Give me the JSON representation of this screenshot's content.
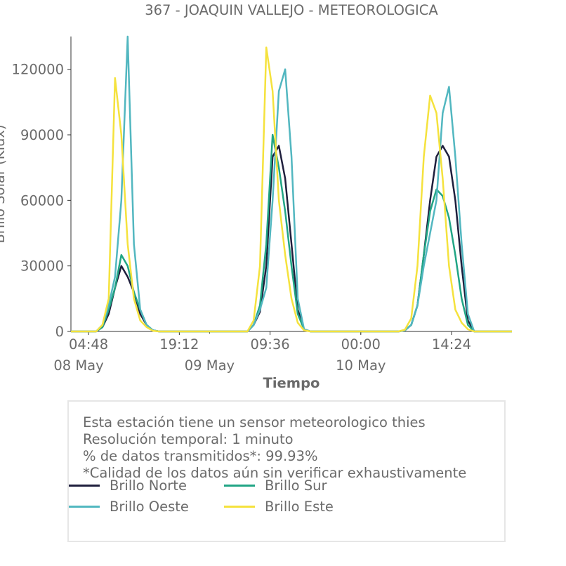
{
  "chart_data": {
    "type": "line",
    "title": "367 - JOAQUIN VALLEJO - METEOROLOGICA",
    "xlabel": "Tiempo",
    "ylabel": "Brillo Solar (Klux)",
    "xlim": [
      "2023-05-08 02:00",
      "2023-05-10 23:59"
    ],
    "ylim": [
      0,
      135000
    ],
    "y_ticks": [
      0,
      30000,
      60000,
      90000,
      120000
    ],
    "y_tick_labels": [
      "0",
      "30000",
      "60000",
      "90000",
      "120000"
    ],
    "x_ticks": [
      "2023-05-08 04:48",
      "2023-05-08 19:12",
      "2023-05-09 09:36",
      "2023-05-10 00:00",
      "2023-05-10 14:24"
    ],
    "x_tick_labels": [
      "04:48",
      "19:12",
      "09:36",
      "00:00",
      "14:24"
    ],
    "x_date_labels": [
      {
        "at": "2023-05-08 00:00",
        "label": "08 May"
      },
      {
        "at": "2023-05-09 00:00",
        "label": "09 May"
      },
      {
        "at": "2023-05-10 00:00",
        "label": "10 May"
      }
    ],
    "grid": false,
    "legend_placement": "bottom",
    "series": [
      {
        "name": "Brillo Norte",
        "color": "#1f1f3d",
        "x": [
          "2023-05-08 06:00",
          "2023-05-08 07:00",
          "2023-05-08 08:00",
          "2023-05-08 09:00",
          "2023-05-08 10:00",
          "2023-05-08 11:00",
          "2023-05-08 12:00",
          "2023-05-08 13:00",
          "2023-05-08 14:00",
          "2023-05-08 15:00",
          "2023-05-08 16:00",
          "2023-05-09 06:00",
          "2023-05-09 07:00",
          "2023-05-09 08:00",
          "2023-05-09 09:00",
          "2023-05-09 10:00",
          "2023-05-09 11:00",
          "2023-05-09 12:00",
          "2023-05-09 13:00",
          "2023-05-09 14:00",
          "2023-05-09 15:00",
          "2023-05-09 16:00",
          "2023-05-10 06:00",
          "2023-05-10 07:00",
          "2023-05-10 08:00",
          "2023-05-10 09:00",
          "2023-05-10 10:00",
          "2023-05-10 11:00",
          "2023-05-10 12:00",
          "2023-05-10 13:00",
          "2023-05-10 14:00",
          "2023-05-10 15:00",
          "2023-05-10 16:00",
          "2023-05-10 17:00",
          "2023-05-10 18:00"
        ],
        "y": [
          0,
          2000,
          8000,
          20000,
          30000,
          25000,
          18000,
          8000,
          3000,
          500,
          0,
          0,
          3000,
          9000,
          30000,
          80000,
          85000,
          70000,
          40000,
          10000,
          1000,
          0,
          0,
          500,
          3000,
          12000,
          35000,
          60000,
          80000,
          85000,
          80000,
          60000,
          30000,
          5000,
          0
        ]
      },
      {
        "name": "Brillo Sur",
        "color": "#21a585",
        "x": [
          "2023-05-08 06:00",
          "2023-05-08 07:00",
          "2023-05-08 08:00",
          "2023-05-08 09:00",
          "2023-05-08 10:00",
          "2023-05-08 11:00",
          "2023-05-08 12:00",
          "2023-05-08 13:00",
          "2023-05-08 14:00",
          "2023-05-08 15:00",
          "2023-05-08 16:00",
          "2023-05-09 06:00",
          "2023-05-09 07:00",
          "2023-05-09 08:00",
          "2023-05-09 09:00",
          "2023-05-09 10:00",
          "2023-05-09 11:00",
          "2023-05-09 12:00",
          "2023-05-09 13:00",
          "2023-05-09 14:00",
          "2023-05-09 15:00",
          "2023-05-09 16:00",
          "2023-05-10 06:00",
          "2023-05-10 07:00",
          "2023-05-10 08:00",
          "2023-05-10 09:00",
          "2023-05-10 10:00",
          "2023-05-10 11:00",
          "2023-05-10 12:00",
          "2023-05-10 13:00",
          "2023-05-10 14:00",
          "2023-05-10 15:00",
          "2023-05-10 16:00",
          "2023-05-10 17:00",
          "2023-05-10 18:00"
        ],
        "y": [
          0,
          2000,
          10000,
          20000,
          35000,
          30000,
          18000,
          10000,
          3000,
          500,
          0,
          0,
          3000,
          12000,
          40000,
          90000,
          75000,
          55000,
          30000,
          8000,
          1000,
          0,
          0,
          500,
          3000,
          12000,
          35000,
          55000,
          65000,
          62000,
          52000,
          35000,
          15000,
          3000,
          0
        ]
      },
      {
        "name": "Brillo Oeste",
        "color": "#52b7c0",
        "x": [
          "2023-05-08 06:00",
          "2023-05-08 07:00",
          "2023-05-08 08:00",
          "2023-05-08 09:00",
          "2023-05-08 10:00",
          "2023-05-08 11:00",
          "2023-05-08 12:00",
          "2023-05-08 13:00",
          "2023-05-08 14:00",
          "2023-05-08 15:00",
          "2023-05-08 16:00",
          "2023-05-09 06:00",
          "2023-05-09 07:00",
          "2023-05-09 08:00",
          "2023-05-09 09:00",
          "2023-05-09 10:00",
          "2023-05-09 11:00",
          "2023-05-09 12:00",
          "2023-05-09 13:00",
          "2023-05-09 14:00",
          "2023-05-09 15:00",
          "2023-05-09 16:00",
          "2023-05-10 06:00",
          "2023-05-10 07:00",
          "2023-05-10 08:00",
          "2023-05-10 09:00",
          "2023-05-10 10:00",
          "2023-05-10 11:00",
          "2023-05-10 12:00",
          "2023-05-10 13:00",
          "2023-05-10 14:00",
          "2023-05-10 15:00",
          "2023-05-10 16:00",
          "2023-05-10 17:00",
          "2023-05-10 18:00"
        ],
        "y": [
          0,
          3000,
          12000,
          25000,
          60000,
          135000,
          40000,
          10000,
          3000,
          500,
          0,
          0,
          3000,
          10000,
          20000,
          60000,
          110000,
          120000,
          80000,
          15000,
          1000,
          0,
          0,
          500,
          3000,
          12000,
          30000,
          45000,
          60000,
          100000,
          112000,
          80000,
          40000,
          8000,
          0
        ]
      },
      {
        "name": "Brillo Este",
        "color": "#f5e23d",
        "x": [
          "2023-05-08 06:00",
          "2023-05-08 07:00",
          "2023-05-08 08:00",
          "2023-05-08 09:00",
          "2023-05-08 10:00",
          "2023-05-08 11:00",
          "2023-05-08 12:00",
          "2023-05-08 13:00",
          "2023-05-08 14:00",
          "2023-05-08 15:00",
          "2023-05-08 16:00",
          "2023-05-09 06:00",
          "2023-05-09 07:00",
          "2023-05-09 08:00",
          "2023-05-09 09:00",
          "2023-05-09 10:00",
          "2023-05-09 11:00",
          "2023-05-09 12:00",
          "2023-05-09 13:00",
          "2023-05-09 14:00",
          "2023-05-09 15:00",
          "2023-05-09 16:00",
          "2023-05-10 06:00",
          "2023-05-10 07:00",
          "2023-05-10 08:00",
          "2023-05-10 09:00",
          "2023-05-10 10:00",
          "2023-05-10 11:00",
          "2023-05-10 12:00",
          "2023-05-10 13:00",
          "2023-05-10 14:00",
          "2023-05-10 15:00",
          "2023-05-10 16:00",
          "2023-05-10 17:00",
          "2023-05-10 18:00"
        ],
        "y": [
          0,
          3000,
          15000,
          116000,
          90000,
          40000,
          15000,
          5000,
          2000,
          300,
          0,
          0,
          5000,
          30000,
          130000,
          110000,
          60000,
          35000,
          15000,
          4000,
          500,
          0,
          0,
          800,
          6000,
          30000,
          80000,
          108000,
          100000,
          70000,
          30000,
          10000,
          4000,
          1000,
          0
        ]
      }
    ]
  },
  "info": {
    "lines": [
      "Esta estación tiene un sensor meteorologico thies",
      "Resolución temporal: 1 minuto",
      "% de datos transmitidos*: 99.93%",
      "*Calidad de los datos aún sin verificar exhaustivamente"
    ]
  },
  "legend": {
    "items": [
      {
        "label": "Brillo Norte",
        "color": "#1f1f3d"
      },
      {
        "label": "Brillo Sur",
        "color": "#21a585"
      },
      {
        "label": "Brillo Oeste",
        "color": "#52b7c0"
      },
      {
        "label": "Brillo Este",
        "color": "#f5e23d"
      }
    ]
  }
}
